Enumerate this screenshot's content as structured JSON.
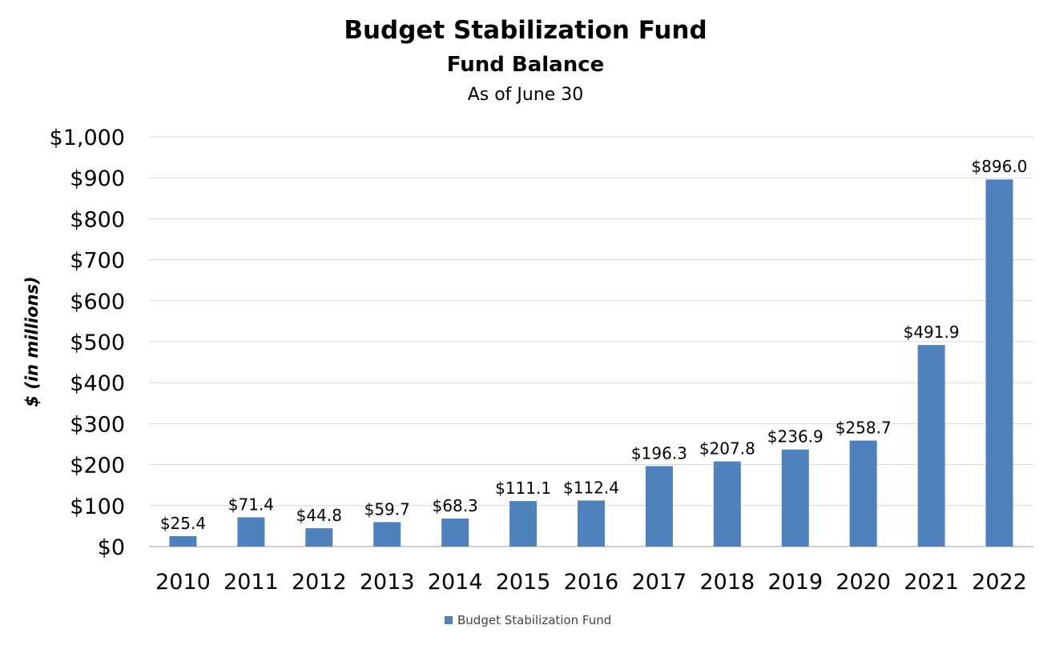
{
  "chart_data": {
    "type": "bar",
    "title": "Budget Stabilization Fund",
    "subtitle": "Fund Balance",
    "subtitle2": "As of June 30",
    "xlabel": "",
    "ylabel": "$ (in millions)",
    "ylim": [
      0,
      1000
    ],
    "ytick_step": 100,
    "yticks": [
      "$0",
      "$100",
      "$200",
      "$300",
      "$400",
      "$500",
      "$600",
      "$700",
      "$800",
      "$900",
      "$1,000"
    ],
    "grid": true,
    "legend_position": "bottom",
    "categories": [
      "2010",
      "2011",
      "2012",
      "2013",
      "2014",
      "2015",
      "2016",
      "2017",
      "2018",
      "2019",
      "2020",
      "2021",
      "2022"
    ],
    "series": [
      {
        "name": "Budget Stabilization Fund",
        "color": "#4F81BD",
        "values": [
          25.4,
          71.4,
          44.8,
          59.7,
          68.3,
          111.1,
          112.4,
          196.3,
          207.8,
          236.9,
          258.7,
          491.9,
          896.0
        ],
        "labels": [
          "$25.4",
          "$71.4",
          "$44.8",
          "$59.7",
          "$68.3",
          "$111.1",
          "$112.4",
          "$196.3",
          "$207.8",
          "$236.9",
          "$258.7",
          "$491.9",
          "$896.0"
        ]
      }
    ]
  }
}
